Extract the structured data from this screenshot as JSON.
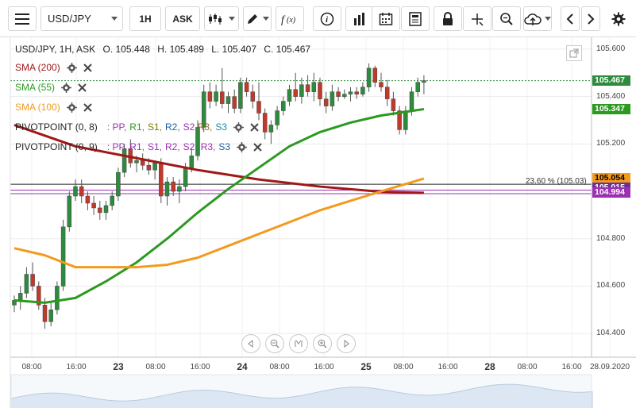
{
  "toolbar": {
    "symbol": "USD/JPY",
    "timeframe": "1H",
    "price_type": "ASK"
  },
  "header": {
    "instrument_line": "USD/JPY, 1H, ASK",
    "open": "O. 105.448",
    "high": "H. 105.489",
    "low": "L. 105.407",
    "close": "C. 105.467"
  },
  "indicators": [
    {
      "label": "SMA (200)",
      "color": "#a01818"
    },
    {
      "label": "SMA (55)",
      "color": "#2b9a1e"
    },
    {
      "label": "SMA (100)",
      "color": "#f39a1c"
    }
  ],
  "pivots": [
    {
      "label": "PIVOTPOINT (0, 8)",
      "parts": [
        ": PP,",
        "R1,",
        "S1,",
        "R2,",
        "S2,",
        "R3,",
        "S3"
      ]
    },
    {
      "label": "PIVOTPOINT (0, 9)",
      "parts": [
        ": PP,",
        "R1,",
        "S1,",
        "R2,",
        "S2,",
        "R3,",
        "S3"
      ]
    }
  ],
  "price_tags": {
    "last": "105.467",
    "sma55": "105.347",
    "fib": "105.054",
    "hidden": "105.015",
    "sma200": "104.994"
  },
  "fib_label": "23.60 % (105.03)",
  "colors": {
    "candle_up": "#2e8b3e",
    "candle_down": "#c0392b",
    "sma200": "#a01818",
    "sma55": "#2b9a1e",
    "sma100": "#f39a1c",
    "last_tag": "#2e8b3e",
    "pivot_line": "#9b30b0"
  },
  "chart_data": {
    "type": "line",
    "instrument": "USD/JPY",
    "interval": "1H",
    "ylim": [
      104.3,
      105.65
    ],
    "y_ticks": [
      "105.600",
      "105.400",
      "105.200",
      "104.800",
      "104.600",
      "104.400"
    ],
    "x_ticks": [
      "08:00",
      "16:00",
      "23",
      "08:00",
      "16:00",
      "24",
      "08:00",
      "16:00",
      "25",
      "08:00",
      "16:00",
      "28",
      "08:00",
      "16:00",
      "28.09.2020"
    ],
    "candles": [
      {
        "o": 104.52,
        "h": 104.56,
        "l": 104.49,
        "c": 104.54
      },
      {
        "o": 104.54,
        "h": 104.6,
        "l": 104.5,
        "c": 104.57
      },
      {
        "o": 104.57,
        "h": 104.68,
        "l": 104.55,
        "c": 104.65
      },
      {
        "o": 104.65,
        "h": 104.7,
        "l": 104.58,
        "c": 104.6
      },
      {
        "o": 104.6,
        "h": 104.62,
        "l": 104.5,
        "c": 104.52
      },
      {
        "o": 104.52,
        "h": 104.55,
        "l": 104.42,
        "c": 104.45
      },
      {
        "o": 104.45,
        "h": 104.53,
        "l": 104.43,
        "c": 104.5
      },
      {
        "o": 104.5,
        "h": 104.62,
        "l": 104.48,
        "c": 104.6
      },
      {
        "o": 104.6,
        "h": 104.88,
        "l": 104.58,
        "c": 104.85
      },
      {
        "o": 104.85,
        "h": 105.0,
        "l": 104.83,
        "c": 104.98
      },
      {
        "o": 104.98,
        "h": 105.05,
        "l": 104.96,
        "c": 105.02
      },
      {
        "o": 105.02,
        "h": 105.05,
        "l": 104.95,
        "c": 104.98
      },
      {
        "o": 104.98,
        "h": 105.0,
        "l": 104.92,
        "c": 104.95
      },
      {
        "o": 104.95,
        "h": 104.98,
        "l": 104.9,
        "c": 104.93
      },
      {
        "o": 104.93,
        "h": 104.96,
        "l": 104.88,
        "c": 104.91
      },
      {
        "o": 104.91,
        "h": 104.96,
        "l": 104.88,
        "c": 104.94
      },
      {
        "o": 104.94,
        "h": 105.0,
        "l": 104.92,
        "c": 104.98
      },
      {
        "o": 104.98,
        "h": 105.1,
        "l": 104.96,
        "c": 105.08
      },
      {
        "o": 105.08,
        "h": 105.2,
        "l": 105.06,
        "c": 105.18
      },
      {
        "o": 105.18,
        "h": 105.22,
        "l": 105.1,
        "c": 105.12
      },
      {
        "o": 105.12,
        "h": 105.15,
        "l": 105.08,
        "c": 105.13
      },
      {
        "o": 105.13,
        "h": 105.16,
        "l": 105.09,
        "c": 105.11
      },
      {
        "o": 105.11,
        "h": 105.14,
        "l": 105.07,
        "c": 105.09
      },
      {
        "o": 105.09,
        "h": 105.13,
        "l": 105.05,
        "c": 105.12
      },
      {
        "o": 105.12,
        "h": 105.14,
        "l": 104.95,
        "c": 104.98
      },
      {
        "o": 104.98,
        "h": 105.06,
        "l": 104.94,
        "c": 105.04
      },
      {
        "o": 105.04,
        "h": 105.06,
        "l": 104.98,
        "c": 105.0
      },
      {
        "o": 105.0,
        "h": 105.05,
        "l": 104.95,
        "c": 105.02
      },
      {
        "o": 105.02,
        "h": 105.12,
        "l": 105.0,
        "c": 105.1
      },
      {
        "o": 105.1,
        "h": 105.18,
        "l": 105.08,
        "c": 105.15
      },
      {
        "o": 105.15,
        "h": 105.3,
        "l": 105.13,
        "c": 105.27
      },
      {
        "o": 105.27,
        "h": 105.45,
        "l": 105.25,
        "c": 105.42
      },
      {
        "o": 105.42,
        "h": 105.46,
        "l": 105.35,
        "c": 105.38
      },
      {
        "o": 105.38,
        "h": 105.45,
        "l": 105.36,
        "c": 105.42
      },
      {
        "o": 105.42,
        "h": 105.52,
        "l": 105.35,
        "c": 105.37
      },
      {
        "o": 105.37,
        "h": 105.42,
        "l": 105.33,
        "c": 105.4
      },
      {
        "o": 105.4,
        "h": 105.43,
        "l": 105.33,
        "c": 105.35
      },
      {
        "o": 105.35,
        "h": 105.48,
        "l": 105.33,
        "c": 105.46
      },
      {
        "o": 105.46,
        "h": 105.48,
        "l": 105.4,
        "c": 105.42
      },
      {
        "o": 105.42,
        "h": 105.45,
        "l": 105.35,
        "c": 105.38
      },
      {
        "o": 105.38,
        "h": 105.46,
        "l": 105.3,
        "c": 105.33
      },
      {
        "o": 105.33,
        "h": 105.35,
        "l": 105.22,
        "c": 105.25
      },
      {
        "o": 105.25,
        "h": 105.3,
        "l": 105.2,
        "c": 105.28
      },
      {
        "o": 105.28,
        "h": 105.36,
        "l": 105.26,
        "c": 105.34
      },
      {
        "o": 105.34,
        "h": 105.4,
        "l": 105.32,
        "c": 105.38
      },
      {
        "o": 105.38,
        "h": 105.45,
        "l": 105.36,
        "c": 105.43
      },
      {
        "o": 105.43,
        "h": 105.5,
        "l": 105.38,
        "c": 105.4
      },
      {
        "o": 105.4,
        "h": 105.48,
        "l": 105.37,
        "c": 105.45
      },
      {
        "o": 105.45,
        "h": 105.49,
        "l": 105.4,
        "c": 105.42
      },
      {
        "o": 105.42,
        "h": 105.5,
        "l": 105.38,
        "c": 105.46
      },
      {
        "o": 105.46,
        "h": 105.48,
        "l": 105.36,
        "c": 105.39
      },
      {
        "o": 105.39,
        "h": 105.42,
        "l": 105.33,
        "c": 105.36
      },
      {
        "o": 105.36,
        "h": 105.45,
        "l": 105.34,
        "c": 105.42
      },
      {
        "o": 105.42,
        "h": 105.44,
        "l": 105.38,
        "c": 105.4
      },
      {
        "o": 105.4,
        "h": 105.43,
        "l": 105.39,
        "c": 105.41
      },
      {
        "o": 105.41,
        "h": 105.44,
        "l": 105.38,
        "c": 105.42
      },
      {
        "o": 105.42,
        "h": 105.44,
        "l": 105.39,
        "c": 105.41
      },
      {
        "o": 105.41,
        "h": 105.46,
        "l": 105.4,
        "c": 105.44
      },
      {
        "o": 105.44,
        "h": 105.54,
        "l": 105.42,
        "c": 105.52
      },
      {
        "o": 105.52,
        "h": 105.53,
        "l": 105.44,
        "c": 105.46
      },
      {
        "o": 105.46,
        "h": 105.5,
        "l": 105.42,
        "c": 105.44
      },
      {
        "o": 105.44,
        "h": 105.47,
        "l": 105.36,
        "c": 105.39
      },
      {
        "o": 105.39,
        "h": 105.42,
        "l": 105.32,
        "c": 105.34
      },
      {
        "o": 105.34,
        "h": 105.36,
        "l": 105.24,
        "c": 105.26
      },
      {
        "o": 105.26,
        "h": 105.36,
        "l": 105.24,
        "c": 105.34
      },
      {
        "o": 105.34,
        "h": 105.44,
        "l": 105.32,
        "c": 105.42
      },
      {
        "o": 105.42,
        "h": 105.48,
        "l": 105.4,
        "c": 105.46
      },
      {
        "o": 105.46,
        "h": 105.49,
        "l": 105.41,
        "c": 105.467
      }
    ],
    "series": [
      {
        "name": "SMA (200)",
        "x": [
          0,
          10,
          20,
          30,
          40,
          50,
          60,
          67
        ],
        "y": [
          105.28,
          105.19,
          105.14,
          105.09,
          105.05,
          105.02,
          104.998,
          104.994
        ]
      },
      {
        "name": "SMA (55)",
        "x": [
          0,
          5,
          10,
          15,
          20,
          25,
          30,
          35,
          40,
          45,
          50,
          55,
          60,
          67
        ],
        "y": [
          104.54,
          104.53,
          104.55,
          104.62,
          104.7,
          104.8,
          104.91,
          105.01,
          105.1,
          105.19,
          105.25,
          105.29,
          105.32,
          105.347
        ]
      },
      {
        "name": "SMA (100)",
        "x": [
          0,
          5,
          10,
          15,
          20,
          25,
          30,
          35,
          40,
          45,
          50,
          55,
          60,
          67
        ],
        "y": [
          104.76,
          104.73,
          104.68,
          104.68,
          104.68,
          104.69,
          104.72,
          104.77,
          104.82,
          104.87,
          104.92,
          104.96,
          105.0,
          105.054
        ]
      }
    ],
    "horizontal_lines": [
      {
        "label": "23.60 % (105.03)",
        "y": 105.03
      },
      {
        "label": "PIVOTPOINT (0, 8)",
        "y": 105.005
      },
      {
        "label": "PIVOTPOINT (0, 9)",
        "y": 104.99
      },
      {
        "label": "last",
        "y": 105.467
      }
    ]
  }
}
